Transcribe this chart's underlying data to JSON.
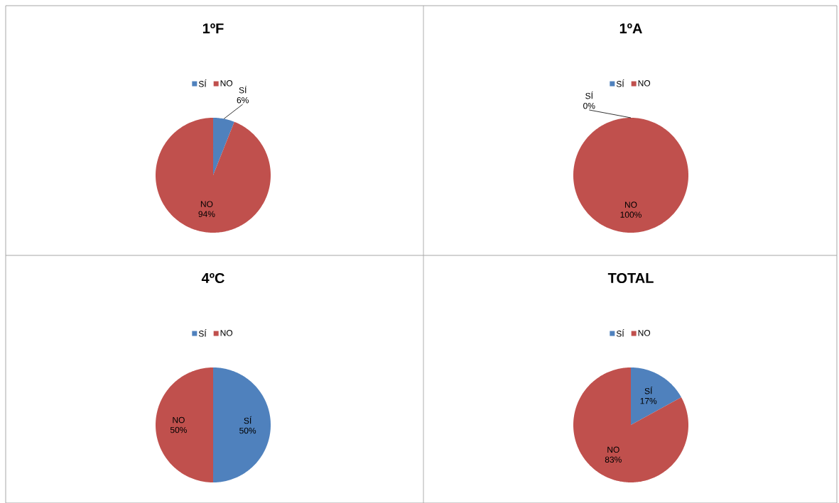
{
  "chart_data": [
    {
      "type": "pie",
      "title": "1ºF",
      "categories": [
        "SÍ",
        "NO"
      ],
      "values": [
        6,
        94
      ],
      "colors": [
        "#4f81bd",
        "#c0504d"
      ],
      "value_labels": [
        "6%",
        "94%"
      ],
      "legend": "top"
    },
    {
      "type": "pie",
      "title": "1ºA",
      "categories": [
        "SÍ",
        "NO"
      ],
      "values": [
        0,
        100
      ],
      "colors": [
        "#4f81bd",
        "#c0504d"
      ],
      "value_labels": [
        "0%",
        "100%"
      ],
      "legend": "top"
    },
    {
      "type": "pie",
      "title": "4ºC",
      "categories": [
        "SÍ",
        "NO"
      ],
      "values": [
        50,
        50
      ],
      "colors": [
        "#4f81bd",
        "#c0504d"
      ],
      "value_labels": [
        "50%",
        "50%"
      ],
      "legend": "top"
    },
    {
      "type": "pie",
      "title": "TOTAL",
      "categories": [
        "SÍ",
        "NO"
      ],
      "values": [
        17,
        83
      ],
      "colors": [
        "#4f81bd",
        "#c0504d"
      ],
      "value_labels": [
        "17%",
        "83%"
      ],
      "legend": "top"
    }
  ]
}
